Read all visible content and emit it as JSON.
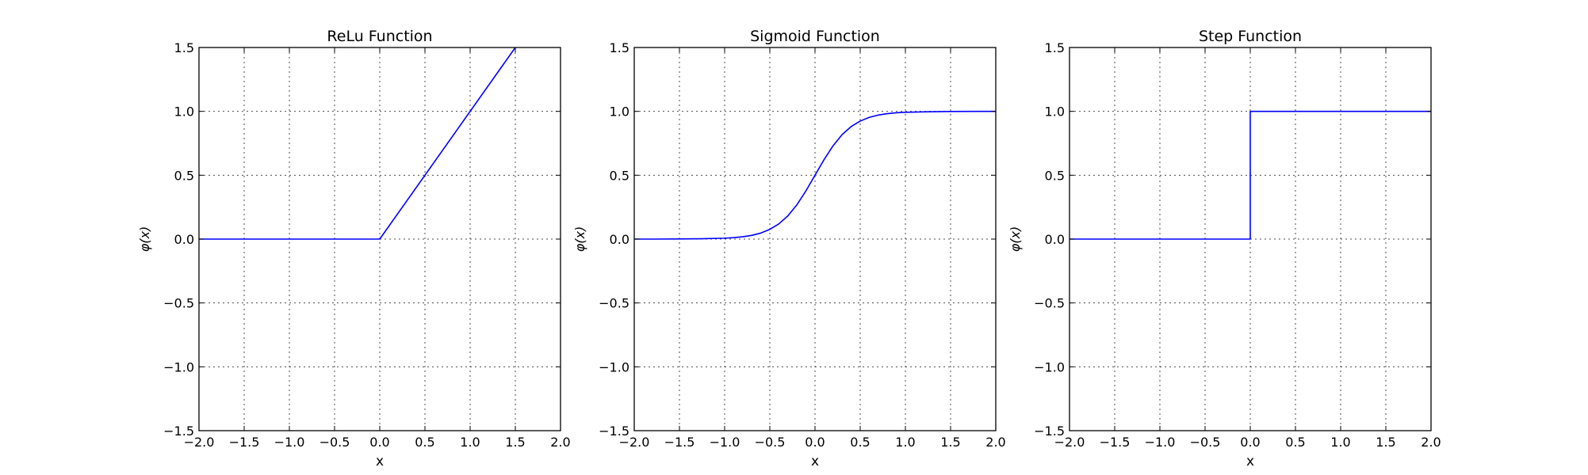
{
  "chart_data": [
    {
      "type": "line",
      "title": "ReLu Function",
      "xlabel": "x",
      "ylabel": "φ(x)",
      "xlim": [
        -2.0,
        2.0
      ],
      "ylim": [
        -1.5,
        1.5
      ],
      "xticks": [
        "−2.0",
        "−1.5",
        "−1.0",
        "−0.5",
        "0.0",
        "0.5",
        "1.0",
        "1.5",
        "2.0"
      ],
      "yticks": [
        "−1.5",
        "−1.0",
        "−0.5",
        "0.0",
        "0.5",
        "1.0",
        "1.5"
      ],
      "grid": true,
      "color": "#0000ff",
      "series": [
        {
          "x": [
            -2.0,
            0.0,
            1.5
          ],
          "y": [
            0.0,
            0.0,
            1.5
          ]
        }
      ]
    },
    {
      "type": "line",
      "title": "Sigmoid Function",
      "xlabel": "x",
      "ylabel": "φ(x)",
      "xlim": [
        -2.0,
        2.0
      ],
      "ylim": [
        -1.5,
        1.5
      ],
      "xticks": [
        "−2.0",
        "−1.5",
        "−1.0",
        "−0.5",
        "0.0",
        "0.5",
        "1.0",
        "1.5",
        "2.0"
      ],
      "yticks": [
        "−1.5",
        "−1.0",
        "−0.5",
        "0.0",
        "0.5",
        "1.0",
        "1.5"
      ],
      "grid": true,
      "color": "#0000ff",
      "series": [
        {
          "x": [
            -2.0,
            -1.75,
            -1.5,
            -1.25,
            -1.0,
            -0.9,
            -0.8,
            -0.7,
            -0.6,
            -0.5,
            -0.4,
            -0.3,
            -0.2,
            -0.1,
            0.0,
            0.1,
            0.2,
            0.3,
            0.4,
            0.5,
            0.6,
            0.7,
            0.8,
            0.9,
            1.0,
            1.25,
            1.5,
            1.75,
            2.0
          ],
          "y": [
            0.0,
            0.0,
            0.001,
            0.003,
            0.007,
            0.011,
            0.018,
            0.029,
            0.047,
            0.076,
            0.119,
            0.182,
            0.269,
            0.378,
            0.5,
            0.622,
            0.731,
            0.818,
            0.881,
            0.924,
            0.953,
            0.971,
            0.982,
            0.989,
            0.993,
            0.997,
            0.999,
            1.0,
            1.0
          ]
        }
      ]
    },
    {
      "type": "line",
      "title": "Step Function",
      "xlabel": "x",
      "ylabel": "φ(x)",
      "xlim": [
        -2.0,
        2.0
      ],
      "ylim": [
        -1.5,
        1.5
      ],
      "xticks": [
        "−2.0",
        "−1.5",
        "−1.0",
        "−0.5",
        "0.0",
        "0.5",
        "1.0",
        "1.5",
        "2.0"
      ],
      "yticks": [
        "−1.5",
        "−1.0",
        "−0.5",
        "0.0",
        "0.5",
        "1.0",
        "1.5"
      ],
      "grid": true,
      "color": "#0000ff",
      "series": [
        {
          "x": [
            -2.0,
            0.0,
            0.0,
            2.0
          ],
          "y": [
            0.0,
            0.0,
            1.0,
            1.0
          ]
        }
      ]
    }
  ]
}
